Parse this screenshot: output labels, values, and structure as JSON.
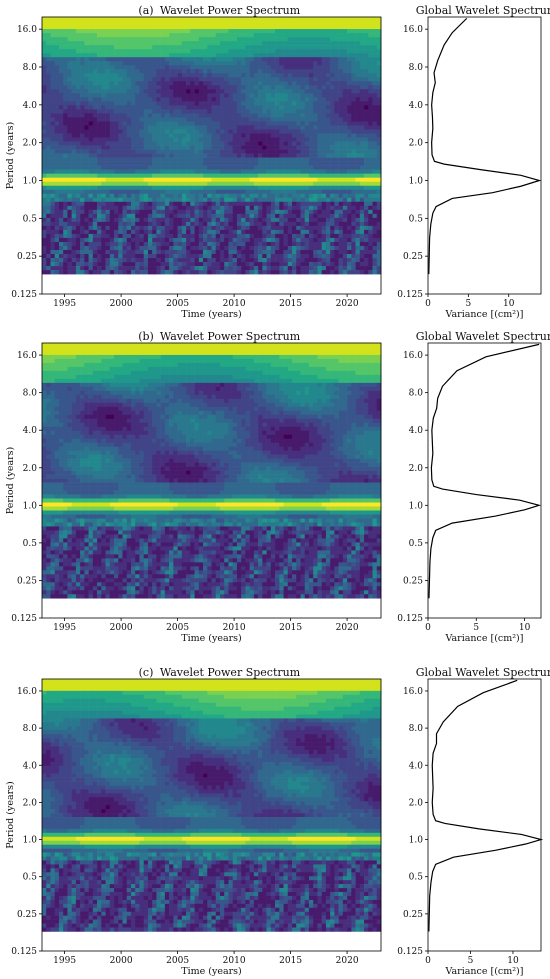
{
  "chart_data": [
    {
      "type": "heatmap",
      "panel_label": "(a)",
      "title": "Wavelet Power Spectrum",
      "xlabel": "Time (years)",
      "ylabel": "Period (years)",
      "xlim": [
        1993,
        2023
      ],
      "x_ticks": [
        1995,
        2000,
        2005,
        2010,
        2015,
        2020
      ],
      "yscale": "log2",
      "ylim": [
        0.125,
        20
      ],
      "y_ticks": [
        0.125,
        0.25,
        0.5,
        1.0,
        2.0,
        4.0,
        8.0,
        16.0
      ],
      "y_tick_labels": [
        "0.125",
        "0.25",
        "0.5",
        "1.0",
        "2.0",
        "4.0",
        "8.0",
        "16.0"
      ],
      "colormap": "viridis",
      "annual_band_period": 1.0,
      "data_lower_limit_period": 0.18
    },
    {
      "type": "line",
      "panel_label": "(a)",
      "title": "Global Wavelet Spectrum",
      "xlabel": "Variance [(cm²)]",
      "yscale": "log2",
      "xlim": [
        0,
        14
      ],
      "x_ticks": [
        0,
        5,
        10
      ],
      "ylim": [
        0.125,
        20
      ],
      "y_ticks": [
        0.125,
        0.25,
        0.5,
        1.0,
        2.0,
        4.0,
        8.0,
        16.0
      ],
      "y_tick_labels": [
        "0.125",
        "0.25",
        "0.5",
        "1.0",
        "2.0",
        "4.0",
        "8.0",
        "16.0"
      ],
      "x": [
        0.1,
        0.15,
        0.2,
        0.35,
        0.6,
        1.0,
        3.0,
        8.0,
        11.5,
        13.8,
        11.5,
        6.5,
        2.0,
        0.8,
        0.5,
        0.45,
        0.6,
        0.55,
        0.45,
        0.6,
        0.9,
        0.75,
        1.2,
        2.0,
        3.0,
        4.8
      ],
      "y": [
        0.18,
        0.25,
        0.35,
        0.45,
        0.55,
        0.62,
        0.72,
        0.8,
        0.9,
        1.0,
        1.1,
        1.22,
        1.35,
        1.42,
        1.6,
        2.0,
        2.6,
        3.2,
        4.0,
        5.0,
        6.0,
        7.2,
        9.0,
        12.0,
        15.0,
        19.5
      ]
    },
    {
      "type": "heatmap",
      "panel_label": "(b)",
      "title": "Wavelet Power Spectrum",
      "xlabel": "Time (years)",
      "ylabel": "Period (years)",
      "xlim": [
        1993,
        2023
      ],
      "x_ticks": [
        1995,
        2000,
        2005,
        2010,
        2015,
        2020
      ],
      "yscale": "log2",
      "ylim": [
        0.125,
        20
      ],
      "y_ticks": [
        0.125,
        0.25,
        0.5,
        1.0,
        2.0,
        4.0,
        8.0,
        16.0
      ],
      "y_tick_labels": [
        "0.125",
        "0.25",
        "0.5",
        "1.0",
        "2.0",
        "4.0",
        "8.0",
        "16.0"
      ],
      "colormap": "viridis",
      "annual_band_period": 1.0,
      "data_lower_limit_period": 0.18
    },
    {
      "type": "line",
      "panel_label": "(b)",
      "title": "Global Wavelet Spectrum",
      "xlabel": "Variance [(cm²)]",
      "yscale": "log2",
      "xlim": [
        0,
        11.7
      ],
      "x_ticks": [
        0,
        5,
        10
      ],
      "ylim": [
        0.125,
        20
      ],
      "y_ticks": [
        0.125,
        0.25,
        0.5,
        1.0,
        2.0,
        4.0,
        8.0,
        16.0
      ],
      "y_tick_labels": [
        "0.125",
        "0.25",
        "0.5",
        "1.0",
        "2.0",
        "4.0",
        "8.0",
        "16.0"
      ],
      "x": [
        0.1,
        0.15,
        0.2,
        0.3,
        0.5,
        0.8,
        2.5,
        7.0,
        10.0,
        11.5,
        9.5,
        5.0,
        1.5,
        0.6,
        0.4,
        0.35,
        0.5,
        0.45,
        0.4,
        0.55,
        0.9,
        1.0,
        1.5,
        3.0,
        6.0,
        11.5
      ],
      "y": [
        0.18,
        0.25,
        0.35,
        0.45,
        0.55,
        0.63,
        0.72,
        0.82,
        0.92,
        1.0,
        1.1,
        1.22,
        1.35,
        1.42,
        1.6,
        2.0,
        2.6,
        3.2,
        4.0,
        5.0,
        6.0,
        7.2,
        9.0,
        12.0,
        15.5,
        19.5
      ]
    },
    {
      "type": "heatmap",
      "panel_label": "(c)",
      "title": "Wavelet Power Spectrum",
      "xlabel": "Time (years)",
      "ylabel": "Period (years)",
      "xlim": [
        1993,
        2023
      ],
      "x_ticks": [
        1995,
        2000,
        2005,
        2010,
        2015,
        2020
      ],
      "yscale": "log2",
      "ylim": [
        0.125,
        20
      ],
      "y_ticks": [
        0.125,
        0.25,
        0.5,
        1.0,
        2.0,
        4.0,
        8.0,
        16.0
      ],
      "y_tick_labels": [
        "0.125",
        "0.25",
        "0.5",
        "1.0",
        "2.0",
        "4.0",
        "8.0",
        "16.0"
      ],
      "colormap": "viridis",
      "annual_band_period": 1.0,
      "data_lower_limit_period": 0.18
    },
    {
      "type": "line",
      "panel_label": "(c)",
      "title": "Global Wavelet Spectrum",
      "xlabel": "Variance [(cm²)]",
      "yscale": "log2",
      "xlim": [
        0,
        13.3
      ],
      "x_ticks": [
        0,
        5,
        10
      ],
      "ylim": [
        0.125,
        20
      ],
      "y_ticks": [
        0.125,
        0.25,
        0.5,
        1.0,
        2.0,
        4.0,
        8.0,
        16.0
      ],
      "y_tick_labels": [
        "0.125",
        "0.25",
        "0.5",
        "1.0",
        "2.0",
        "4.0",
        "8.0",
        "16.0"
      ],
      "x": [
        0.1,
        0.15,
        0.2,
        0.35,
        0.55,
        0.9,
        3.0,
        8.0,
        11.5,
        13.3,
        11.0,
        6.0,
        2.0,
        0.9,
        0.6,
        0.5,
        0.6,
        0.55,
        0.5,
        0.6,
        1.0,
        1.0,
        1.8,
        3.5,
        6.5,
        10.5
      ],
      "y": [
        0.18,
        0.25,
        0.35,
        0.45,
        0.55,
        0.63,
        0.72,
        0.82,
        0.92,
        1.0,
        1.1,
        1.22,
        1.35,
        1.42,
        1.6,
        2.0,
        2.6,
        3.2,
        4.0,
        5.0,
        6.0,
        7.2,
        9.0,
        12.0,
        15.5,
        19.5
      ]
    }
  ]
}
